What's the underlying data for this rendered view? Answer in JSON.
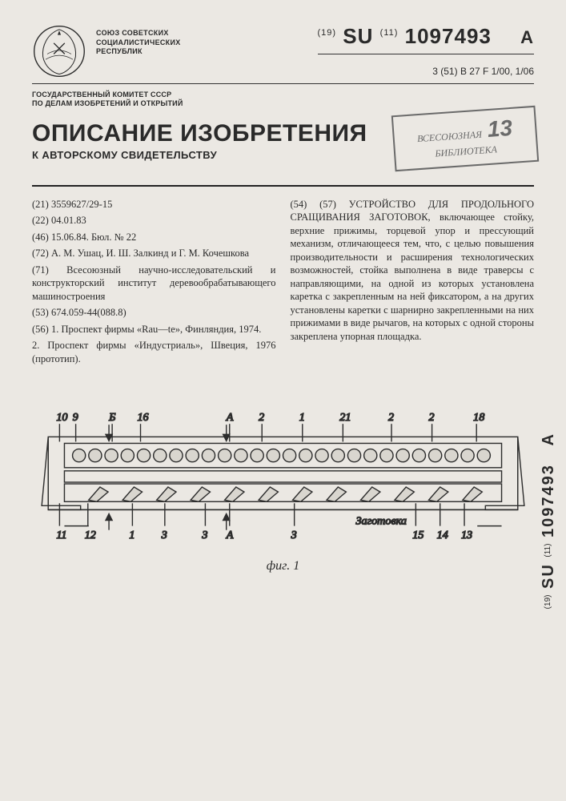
{
  "header": {
    "union": "СОЮЗ СОВЕТСКИХ\nСОЦИАЛИСТИЧЕСКИХ\nРЕСПУБЛИК",
    "committee": "ГОСУДАРСТВЕННЫЙ КОМИТЕТ СССР\nПО ДЕЛАМ ИЗОБРЕТЕНИЙ И ОТКРЫТИЙ",
    "country_prefix": "(19)",
    "country_code": "SU",
    "doc_prefix": "(11)",
    "doc_number": "1097493",
    "kind_code": "A",
    "ipc_prefix": "3 (51)",
    "ipc": "В 27 F 1/00, 1/06"
  },
  "title": {
    "main": "ОПИСАНИЕ ИЗОБРЕТЕНИЯ",
    "sub": "К АВТОРСКОМУ СВИДЕТЕЛЬСТВУ"
  },
  "stamp": {
    "line1": "ВСЕСОЮЗНАЯ",
    "number": "13",
    "line2": "БИБЛИОТЕКА"
  },
  "left_column": {
    "f21": "(21) 3559627/29-15",
    "f22": "(22) 04.01.83",
    "f46": "(46) 15.06.84. Бюл. № 22",
    "f72": "(72) А. М. Ушац, И. Ш. Залкинд и Г. М. Кочешкова",
    "f71": "(71) Всесоюзный научно-исследовательский и конструкторский институт деревообрабатывающего машиностроения",
    "f53": "(53) 674.059-44(088.8)",
    "f56_1": "(56) 1. Проспект фирмы «Rau—te», Финляндия, 1974.",
    "f56_2": "2. Проспект фирмы «Индустриаль», Швеция, 1976 (прототип)."
  },
  "right_column": {
    "abstract": "(54) (57) УСТРОЙСТВО ДЛЯ ПРОДОЛЬНОГО СРАЩИВАНИЯ ЗАГОТОВОК, включающее стойку, верхние прижимы, торцевой упор и прессующий механизм, отличающееся тем, что, с целью повышения производительности и расширения технологических возможностей, стойка выполнена в виде траверсы с направляющими, на одной из которых установлена каретка с закрепленным на ней фиксатором, а на других установлены каретки с шарнирно закрепленными на них прижимами в виде рычагов, на которых с одной стороны закреплена упорная площадка."
  },
  "figure": {
    "caption": "фиг. 1",
    "label_zagotovka": "Заготовка",
    "callouts_top": [
      "10",
      "9",
      "Б",
      "16",
      "А",
      "2",
      "1",
      "21",
      "2",
      "2",
      "18"
    ],
    "callouts_bottom": [
      "11",
      "12",
      "1",
      "3",
      "3",
      "А",
      "3",
      "14",
      "13",
      "15"
    ],
    "colors": {
      "stroke": "#2d2d2d",
      "fill": "#d9d6cf",
      "bg": "#ebe8e3"
    }
  },
  "side": {
    "prefix1": "(19)",
    "cc": "SU",
    "prefix2": "(11)",
    "num": "1097493",
    "kind": "A"
  }
}
